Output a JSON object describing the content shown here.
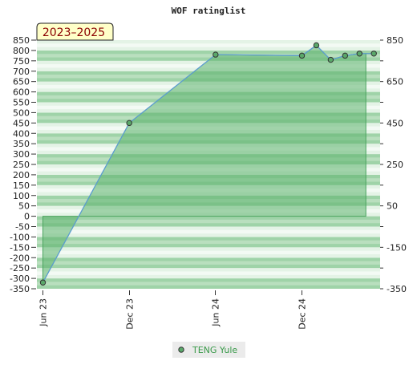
{
  "chart_data": {
    "type": "line",
    "title": "WOF ratinglist",
    "badge": "2023–2025",
    "x_ticks": [
      "Jun 23",
      "Dec 23",
      "Jun 24",
      "Dec 24"
    ],
    "left_axis": {
      "ylim": [
        -350,
        850
      ],
      "ticks": [
        "850",
        "800",
        "750",
        "700",
        "650",
        "600",
        "550",
        "500",
        "450",
        "400",
        "350",
        "300",
        "250",
        "200",
        "150",
        "100",
        "50",
        "0",
        "-50",
        "-100",
        "-150",
        "-200",
        "-250",
        "-300",
        "-350"
      ]
    },
    "right_axis": {
      "ticks": [
        "850",
        "650",
        "450",
        "250",
        "50",
        "-150",
        "-350"
      ]
    },
    "series": [
      {
        "name": "TENG Yule",
        "x": [
          "2023-06",
          "2023-12",
          "2024-06",
          "2024-12",
          "2025-01",
          "2025-02",
          "2025-03",
          "2025-04",
          "2025-05"
        ],
        "values": [
          -320,
          450,
          780,
          775,
          825,
          755,
          775,
          785,
          785
        ]
      }
    ],
    "grid": true,
    "legend": "bottom-center",
    "colors": {
      "line": "#5b9bd5",
      "marker": "#5aa86a",
      "fill": "#5db36e",
      "band_dark": "#9fd3a8",
      "band_light": "#e4f3e6",
      "badge_bg": "#ffffc8",
      "badge_text": "#8b0000"
    }
  }
}
